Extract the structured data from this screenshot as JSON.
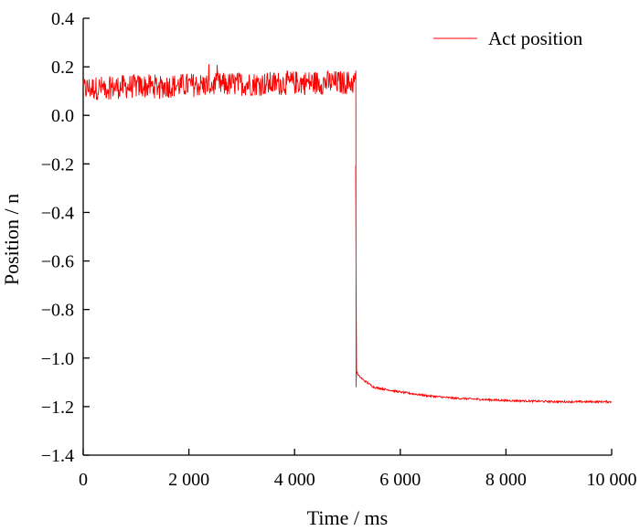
{
  "chart_data": {
    "type": "line",
    "title": "",
    "xlabel": "Time / ms",
    "ylabel": "Position / n",
    "xlim": [
      0,
      10000
    ],
    "ylim": [
      -1.4,
      0.4
    ],
    "x_ticks": [
      0,
      2000,
      4000,
      6000,
      8000,
      10000
    ],
    "x_tick_labels": [
      "0",
      "2 000",
      "4 000",
      "6 000",
      "8 000",
      "10 000"
    ],
    "y_ticks": [
      0.4,
      0.2,
      0.0,
      -0.2,
      -0.4,
      -0.6,
      -0.8,
      -1.0,
      -1.2,
      -1.4
    ],
    "y_tick_labels": [
      "0.4",
      "0.2",
      "0.0",
      "−0.2",
      "−0.4",
      "−0.6",
      "−0.8",
      "−1.0",
      "−1.2",
      "−1.4"
    ],
    "grid": false,
    "legend_position": "top-right",
    "series": [
      {
        "name": "Act position",
        "color": "#ff0000",
        "noise_amplitude_before_step": 0.05,
        "x": [
          0,
          500,
          1000,
          1500,
          2000,
          2500,
          3000,
          3500,
          4000,
          4500,
          5000,
          5150,
          5170,
          5200,
          5300,
          5500,
          6000,
          6500,
          7000,
          8000,
          9000,
          10000
        ],
        "y": [
          0.11,
          0.115,
          0.12,
          0.12,
          0.125,
          0.125,
          0.13,
          0.13,
          0.135,
          0.135,
          0.135,
          0.135,
          -1.05,
          -1.07,
          -1.09,
          -1.12,
          -1.14,
          -1.155,
          -1.165,
          -1.175,
          -1.18,
          -1.18
        ]
      }
    ]
  }
}
